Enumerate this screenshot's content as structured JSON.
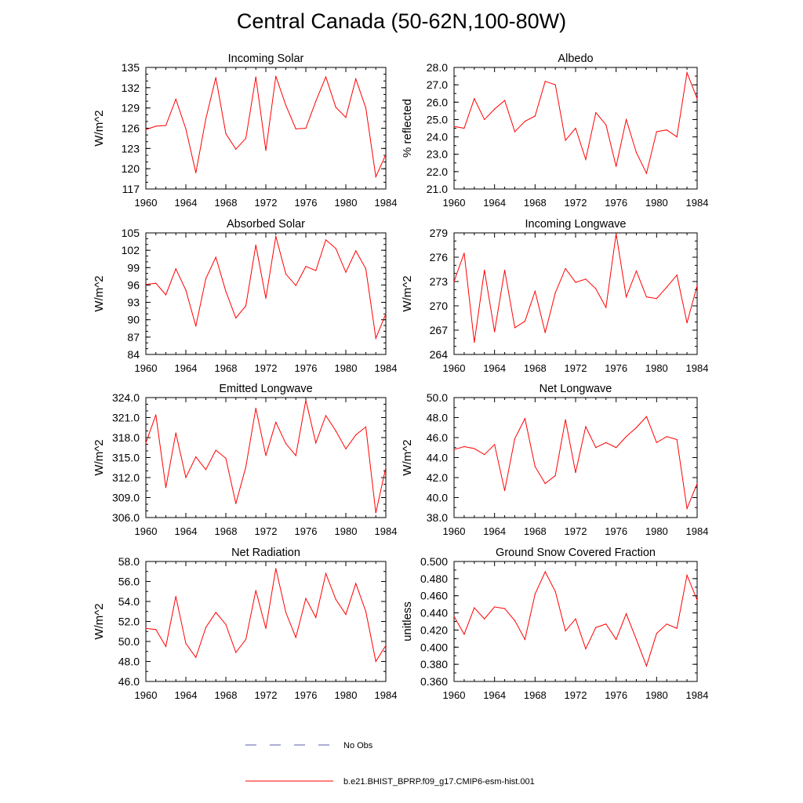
{
  "page": {
    "title": "Central Canada (50-62N,100-80W)"
  },
  "legend": {
    "entries": [
      {
        "label": "No Obs",
        "style": "dashed",
        "color": "#5a5aa8"
      },
      {
        "label": "b.e21.BHIST_BPRP.f09_g17.CMIP6-esm-hist.001",
        "style": "solid",
        "color": "#ff0000"
      }
    ]
  },
  "chart_data": [
    {
      "type": "line",
      "title": "Incoming Solar",
      "xlabel": "",
      "ylabel": "W/m^2",
      "xlim": [
        1960,
        1984
      ],
      "ylim": [
        117,
        135
      ],
      "x_ticks": [
        1960,
        1964,
        1968,
        1972,
        1976,
        1980,
        1984
      ],
      "y_ticks": [
        "117",
        "120",
        "123",
        "126",
        "129",
        "132",
        "135"
      ],
      "y_minor_step": 1,
      "x": [
        1960,
        1961,
        1962,
        1963,
        1964,
        1965,
        1966,
        1967,
        1968,
        1969,
        1970,
        1971,
        1972,
        1973,
        1974,
        1975,
        1976,
        1977,
        1978,
        1979,
        1980,
        1981,
        1982,
        1983,
        1984
      ],
      "series": [
        {
          "color": "#ff0000",
          "values": [
            125.8,
            126.3,
            126.4,
            130.3,
            125.9,
            119.4,
            127.4,
            133.5,
            125.2,
            122.9,
            124.5,
            133.6,
            122.7,
            133.7,
            129.4,
            125.9,
            126.0,
            130.0,
            133.6,
            129.1,
            127.6,
            133.3,
            129.0,
            118.8,
            122.1
          ]
        }
      ]
    },
    {
      "type": "line",
      "title": "Albedo",
      "xlabel": "",
      "ylabel": "% reflected",
      "xlim": [
        1960,
        1984
      ],
      "ylim": [
        21.0,
        28.0
      ],
      "x_ticks": [
        1960,
        1964,
        1968,
        1972,
        1976,
        1980,
        1984
      ],
      "y_ticks": [
        "21.0",
        "22.0",
        "23.0",
        "24.0",
        "25.0",
        "26.0",
        "27.0",
        "28.0"
      ],
      "y_minor_step": 0.5,
      "x": [
        1960,
        1961,
        1962,
        1963,
        1964,
        1965,
        1966,
        1967,
        1968,
        1969,
        1970,
        1971,
        1972,
        1973,
        1974,
        1975,
        1976,
        1977,
        1978,
        1979,
        1980,
        1981,
        1982,
        1983,
        1984
      ],
      "series": [
        {
          "color": "#ff0000",
          "values": [
            24.6,
            24.5,
            26.2,
            25.0,
            25.6,
            26.1,
            24.3,
            24.9,
            25.2,
            27.2,
            27.0,
            23.8,
            24.5,
            22.7,
            25.4,
            24.7,
            22.3,
            25.0,
            23.1,
            21.9,
            24.3,
            24.4,
            24.0,
            27.7,
            26.2
          ]
        }
      ]
    },
    {
      "type": "line",
      "title": "Absorbed Solar",
      "xlabel": "",
      "ylabel": "W/m^2",
      "xlim": [
        1960,
        1984
      ],
      "ylim": [
        84,
        105
      ],
      "x_ticks": [
        1960,
        1964,
        1968,
        1972,
        1976,
        1980,
        1984
      ],
      "y_ticks": [
        "84",
        "87",
        "90",
        "93",
        "96",
        "99",
        "102",
        "105"
      ],
      "y_minor_step": 1,
      "x": [
        1960,
        1961,
        1962,
        1963,
        1964,
        1965,
        1966,
        1967,
        1968,
        1969,
        1970,
        1971,
        1972,
        1973,
        1974,
        1975,
        1976,
        1977,
        1978,
        1979,
        1980,
        1981,
        1982,
        1983,
        1984
      ],
      "series": [
        {
          "color": "#ff0000",
          "values": [
            96.1,
            96.3,
            94.3,
            98.8,
            95.1,
            88.9,
            97.1,
            100.8,
            94.9,
            90.3,
            92.4,
            102.9,
            93.7,
            104.4,
            97.9,
            95.9,
            99.2,
            98.5,
            103.8,
            102.3,
            98.2,
            101.9,
            98.8,
            86.8,
            91.0
          ]
        }
      ]
    },
    {
      "type": "line",
      "title": "Incoming Longwave",
      "xlabel": "",
      "ylabel": "W/m^2",
      "xlim": [
        1960,
        1984
      ],
      "ylim": [
        264,
        279
      ],
      "x_ticks": [
        1960,
        1964,
        1968,
        1972,
        1976,
        1980,
        1984
      ],
      "y_ticks": [
        "264",
        "267",
        "270",
        "273",
        "276",
        "279"
      ],
      "y_minor_step": 1,
      "x": [
        1960,
        1961,
        1962,
        1963,
        1964,
        1965,
        1966,
        1967,
        1968,
        1969,
        1970,
        1971,
        1972,
        1973,
        1974,
        1975,
        1976,
        1977,
        1978,
        1979,
        1980,
        1981,
        1982,
        1983,
        1984
      ],
      "series": [
        {
          "color": "#ff0000",
          "values": [
            273.0,
            276.5,
            265.5,
            274.4,
            266.8,
            274.4,
            267.3,
            268.1,
            271.8,
            266.7,
            271.6,
            274.6,
            272.9,
            273.3,
            272.1,
            269.8,
            278.9,
            271.1,
            274.3,
            271.1,
            270.9,
            272.3,
            273.8,
            267.9,
            272.5
          ]
        }
      ]
    },
    {
      "type": "line",
      "title": "Emitted Longwave",
      "xlabel": "",
      "ylabel": "W/m^2",
      "xlim": [
        1960,
        1984
      ],
      "ylim": [
        306.0,
        324.0
      ],
      "x_ticks": [
        1960,
        1964,
        1968,
        1972,
        1976,
        1980,
        1984
      ],
      "y_ticks": [
        "306.0",
        "309.0",
        "312.0",
        "315.0",
        "318.0",
        "321.0",
        "324.0"
      ],
      "y_minor_step": 1,
      "x": [
        1960,
        1961,
        1962,
        1963,
        1964,
        1965,
        1966,
        1967,
        1968,
        1969,
        1970,
        1971,
        1972,
        1973,
        1974,
        1975,
        1976,
        1977,
        1978,
        1979,
        1980,
        1981,
        1982,
        1983,
        1984
      ],
      "series": [
        {
          "color": "#ff0000",
          "values": [
            317.2,
            321.4,
            310.5,
            318.7,
            312.0,
            315.1,
            313.2,
            316.1,
            314.9,
            308.1,
            313.6,
            322.4,
            315.3,
            320.3,
            317.1,
            315.3,
            323.6,
            317.2,
            321.3,
            319.0,
            316.3,
            318.4,
            319.6,
            306.7,
            313.5
          ]
        }
      ]
    },
    {
      "type": "line",
      "title": "Net Longwave",
      "xlabel": "",
      "ylabel": "W/m^2",
      "xlim": [
        1960,
        1984
      ],
      "ylim": [
        38.0,
        50.0
      ],
      "x_ticks": [
        1960,
        1964,
        1968,
        1972,
        1976,
        1980,
        1984
      ],
      "y_ticks": [
        "38.0",
        "40.0",
        "42.0",
        "44.0",
        "46.0",
        "48.0",
        "50.0"
      ],
      "y_minor_step": 1,
      "x": [
        1960,
        1961,
        1962,
        1963,
        1964,
        1965,
        1966,
        1967,
        1968,
        1969,
        1970,
        1971,
        1972,
        1973,
        1974,
        1975,
        1976,
        1977,
        1978,
        1979,
        1980,
        1981,
        1982,
        1983,
        1984
      ],
      "series": [
        {
          "color": "#ff0000",
          "values": [
            44.8,
            45.1,
            44.9,
            44.3,
            45.3,
            40.7,
            45.9,
            47.9,
            43.1,
            41.4,
            42.2,
            47.8,
            42.5,
            47.1,
            45.0,
            45.5,
            45.0,
            46.1,
            47.0,
            48.1,
            45.5,
            46.1,
            45.8,
            38.9,
            41.4
          ]
        }
      ]
    },
    {
      "type": "line",
      "title": "Net Radiation",
      "xlabel": "",
      "ylabel": "W/m^2",
      "xlim": [
        1960,
        1984
      ],
      "ylim": [
        46.0,
        58.0
      ],
      "x_ticks": [
        1960,
        1964,
        1968,
        1972,
        1976,
        1980,
        1984
      ],
      "y_ticks": [
        "46.0",
        "48.0",
        "50.0",
        "52.0",
        "54.0",
        "56.0",
        "58.0"
      ],
      "y_minor_step": 1,
      "x": [
        1960,
        1961,
        1962,
        1963,
        1964,
        1965,
        1966,
        1967,
        1968,
        1969,
        1970,
        1971,
        1972,
        1973,
        1974,
        1975,
        1976,
        1977,
        1978,
        1979,
        1980,
        1981,
        1982,
        1983,
        1984
      ],
      "series": [
        {
          "color": "#ff0000",
          "values": [
            51.3,
            51.2,
            49.5,
            54.5,
            49.8,
            48.4,
            51.4,
            52.9,
            51.7,
            48.9,
            50.2,
            55.1,
            51.3,
            57.3,
            52.9,
            50.4,
            54.3,
            52.4,
            56.8,
            54.2,
            52.7,
            55.8,
            53.0,
            48.0,
            49.6
          ]
        }
      ]
    },
    {
      "type": "line",
      "title": "Ground Snow Covered Fraction",
      "xlabel": "",
      "ylabel": "unitless",
      "xlim": [
        1960,
        1984
      ],
      "ylim": [
        0.36,
        0.5
      ],
      "x_ticks": [
        1960,
        1964,
        1968,
        1972,
        1976,
        1980,
        1984
      ],
      "y_ticks": [
        "0.360",
        "0.380",
        "0.400",
        "0.420",
        "0.440",
        "0.460",
        "0.480",
        "0.500"
      ],
      "y_minor_step": 0.01,
      "x": [
        1960,
        1961,
        1962,
        1963,
        1964,
        1965,
        1966,
        1967,
        1968,
        1969,
        1970,
        1971,
        1972,
        1973,
        1974,
        1975,
        1976,
        1977,
        1978,
        1979,
        1980,
        1981,
        1982,
        1983,
        1984
      ],
      "series": [
        {
          "color": "#ff0000",
          "values": [
            0.436,
            0.415,
            0.446,
            0.433,
            0.447,
            0.445,
            0.431,
            0.409,
            0.462,
            0.488,
            0.465,
            0.419,
            0.433,
            0.398,
            0.423,
            0.427,
            0.409,
            0.439,
            0.409,
            0.378,
            0.416,
            0.427,
            0.422,
            0.484,
            0.455
          ]
        }
      ]
    }
  ]
}
